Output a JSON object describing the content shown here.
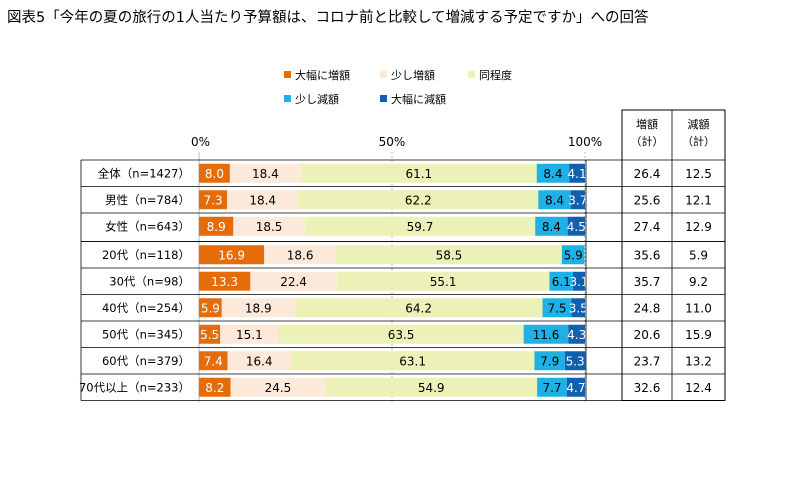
{
  "title": "図表5「今年の夏の旅行の1人当たり予算額は、コロナ前と比較して増減する予定ですか」への回答",
  "chart_data": {
    "type": "bar",
    "orientation": "horizontal-stacked-100",
    "categories": [
      "全体（n=1427）",
      "男性（n=784）",
      "女性（n=643）",
      "20代（n=118）",
      "30代（n=98）",
      "40代（n=254）",
      "50代（n=345）",
      "60代（n=379）",
      "70代以上（n=233）"
    ],
    "series": [
      {
        "name": "大幅に増額",
        "color": "#e46c0a",
        "values": [
          8.0,
          7.3,
          8.9,
          16.9,
          13.3,
          5.9,
          5.5,
          7.4,
          8.2
        ]
      },
      {
        "name": "少し増額",
        "color": "#fde9d9",
        "values": [
          18.4,
          18.4,
          18.5,
          18.6,
          22.4,
          18.9,
          15.1,
          16.4,
          24.5
        ]
      },
      {
        "name": "同程度",
        "color": "#ebf1b7",
        "values": [
          61.1,
          62.2,
          59.7,
          58.5,
          55.1,
          64.2,
          63.5,
          63.1,
          54.9
        ]
      },
      {
        "name": "少し減額",
        "color": "#1fb1e6",
        "values": [
          8.4,
          8.4,
          8.4,
          5.9,
          6.1,
          7.5,
          11.6,
          7.9,
          7.7
        ]
      },
      {
        "name": "大幅に減額",
        "color": "#1160ae",
        "values": [
          4.1,
          3.7,
          4.5,
          0.0,
          3.1,
          3.5,
          4.3,
          5.3,
          4.7
        ]
      }
    ],
    "axis_ticks": [
      "0%",
      "50%",
      "100%"
    ],
    "xlim": [
      0,
      100
    ],
    "group_separator_after": 2,
    "table": {
      "headers": [
        {
          "line1": "増額",
          "line2": "（計）"
        },
        {
          "line1": "減額",
          "line2": "（計）"
        }
      ],
      "increase_total": [
        26.4,
        25.6,
        27.4,
        35.6,
        35.7,
        24.8,
        20.6,
        23.7,
        32.6
      ],
      "decrease_total": [
        12.5,
        12.1,
        12.9,
        5.9,
        9.2,
        11.0,
        15.9,
        13.2,
        12.4
      ]
    }
  }
}
